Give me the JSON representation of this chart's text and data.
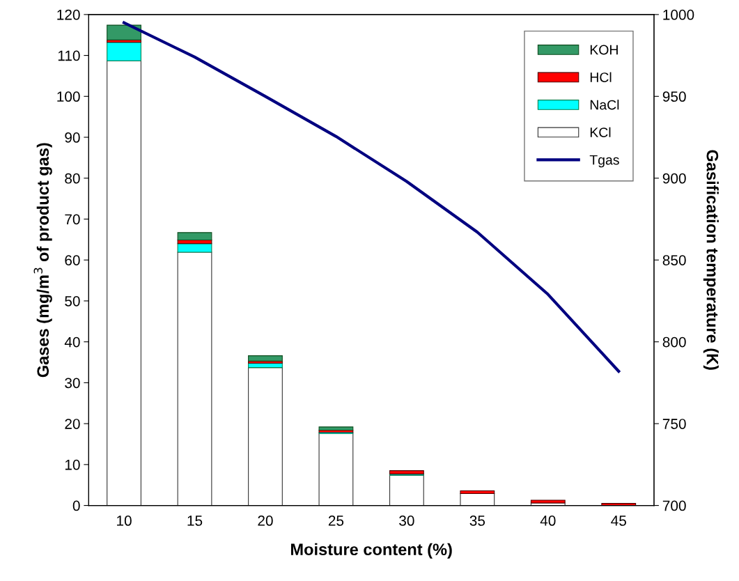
{
  "chart_data": {
    "type": "bar",
    "stacked": true,
    "xlabel": "Moisture content (%)",
    "ylabel": "Gases (mg/m$^{3}$ of product gas)",
    "y2label": "Gasification temperature (K)",
    "categories": [
      "10",
      "15",
      "20",
      "25",
      "30",
      "35",
      "40",
      "45"
    ],
    "series": [
      {
        "name": "KCl",
        "color": "#ffffff",
        "values": [
          108.7,
          61.9,
          33.7,
          17.6,
          7.4,
          2.9,
          0.6,
          null
        ]
      },
      {
        "name": "NaCl",
        "color": "#00ffff",
        "values": [
          4.5,
          2.1,
          1.1,
          0.3,
          0.3,
          null,
          null,
          null
        ]
      },
      {
        "name": "HCl",
        "color": "#ff0000",
        "values": [
          0.6,
          0.9,
          0.5,
          0.5,
          0.8,
          0.7,
          0.7,
          0.5
        ]
      },
      {
        "name": "KOH",
        "color": "#339966",
        "values": [
          3.6,
          1.8,
          1.3,
          0.8,
          null,
          null,
          null,
          null
        ]
      },
      {
        "name": "Tgas",
        "type": "line",
        "axis": "y2",
        "color": "#000080",
        "values": [
          995,
          974,
          950,
          925.5,
          898,
          867,
          829,
          782
        ]
      }
    ],
    "ylim": [
      0,
      120
    ],
    "yticks": [
      0,
      10,
      20,
      30,
      40,
      50,
      60,
      70,
      80,
      90,
      100,
      110,
      120
    ],
    "y2lim": [
      700,
      1000
    ],
    "y2ticks": [
      700,
      750,
      800,
      850,
      900,
      950,
      1000
    ],
    "grid": false,
    "legend": "top right",
    "marker": "none",
    "line_style": "solid"
  }
}
